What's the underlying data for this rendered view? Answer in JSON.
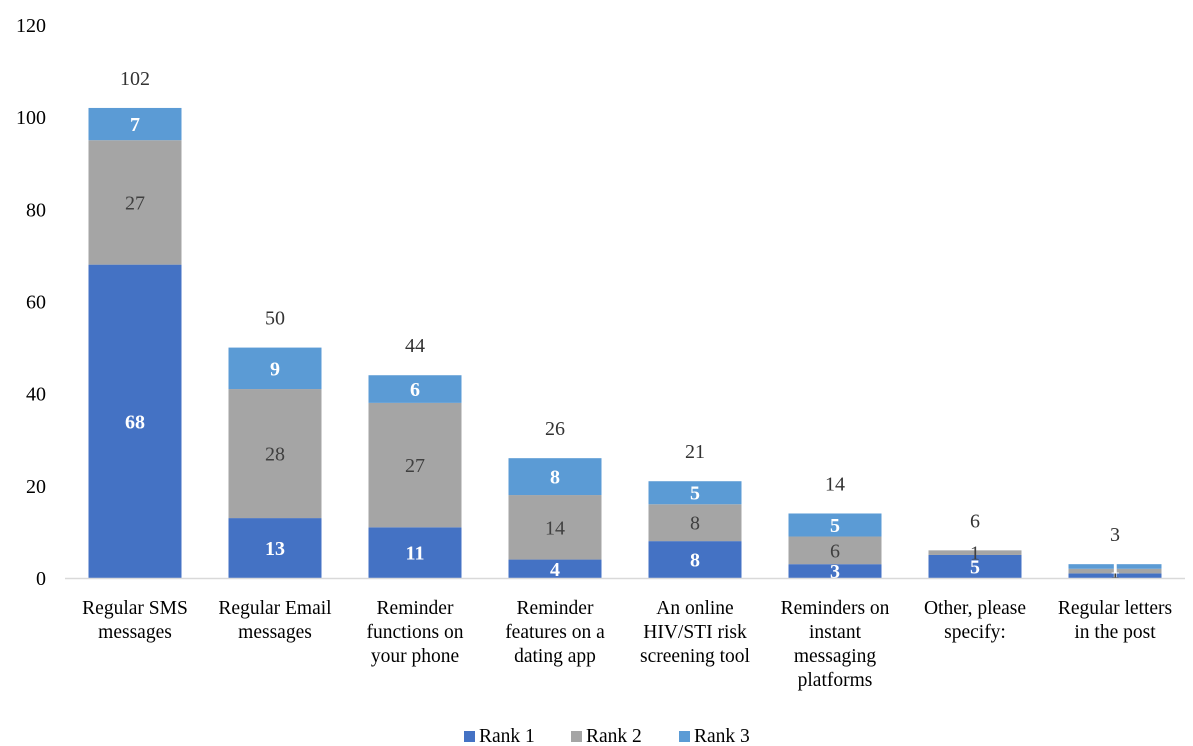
{
  "chart_data": {
    "type": "bar",
    "stacked": true,
    "title": "",
    "xlabel": "",
    "ylabel": "",
    "ylim": [
      0,
      120
    ],
    "yticks": [
      0,
      20,
      40,
      60,
      80,
      100,
      120
    ],
    "grid": false,
    "legend_position": "bottom",
    "categories": [
      "Regular SMS messages",
      "Regular Email messages",
      "Reminder functions on your phone",
      "Reminder features on a dating app",
      "An online HIV/STI risk screening tool",
      "Reminders on instant messaging platforms",
      "Other, please specify:",
      "Regular letters in the post"
    ],
    "category_lines": [
      [
        "Regular SMS",
        "messages"
      ],
      [
        "Regular Email",
        "messages"
      ],
      [
        "Reminder",
        "functions on",
        "your phone"
      ],
      [
        "Reminder",
        "features on a",
        "dating app"
      ],
      [
        "An online",
        "HIV/STI risk",
        "screening tool"
      ],
      [
        "Reminders on",
        "instant",
        "messaging",
        "platforms"
      ],
      [
        "Other, please",
        "specify:"
      ],
      [
        "Regular letters",
        "in the post"
      ]
    ],
    "series": [
      {
        "name": "Rank 1",
        "color": "#4472C4",
        "label_color": "#ffffff",
        "values": [
          68,
          13,
          11,
          4,
          8,
          3,
          5,
          1
        ]
      },
      {
        "name": "Rank 2",
        "color": "#A5A5A5",
        "label_color": "#404040",
        "values": [
          27,
          28,
          27,
          14,
          8,
          6,
          1,
          1
        ]
      },
      {
        "name": "Rank 3",
        "color": "#5B9BD5",
        "label_color": "#ffffff",
        "values": [
          7,
          9,
          6,
          8,
          5,
          5,
          0,
          1
        ]
      }
    ],
    "totals": [
      102,
      50,
      44,
      26,
      21,
      14,
      6,
      3
    ]
  }
}
